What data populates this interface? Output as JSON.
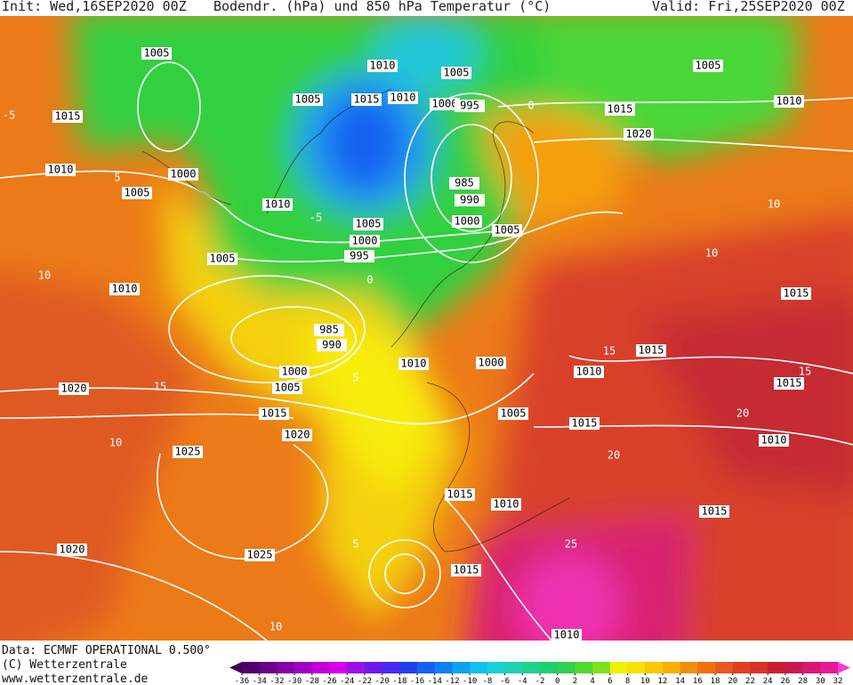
{
  "header": {
    "init": "Init: Wed,16SEP2020 00Z",
    "title": "Bodendr. (hPa) und 850 hPa Temperatur (°C)",
    "valid": "Valid: Fri,25SEP2020 00Z"
  },
  "footer": {
    "data": "Data: ECMWF OPERATIONAL 0.500°",
    "copyright": "(C) Wetterzentrale",
    "url": "www.wetterzentrale.de"
  },
  "colorbar": {
    "ticks": [
      -36,
      -34,
      -32,
      -30,
      -28,
      -26,
      -24,
      -22,
      -20,
      -18,
      -16,
      -14,
      -12,
      -10,
      -8,
      -6,
      -4,
      -2,
      0,
      2,
      4,
      6,
      8,
      10,
      12,
      14,
      16,
      18,
      20,
      22,
      24,
      26,
      28,
      30,
      32
    ],
    "colors": [
      "#40005a",
      "#52006e",
      "#6a0088",
      "#8400a4",
      "#a000c0",
      "#c000d8",
      "#d800e8",
      "#9a10e8",
      "#7018ec",
      "#4a28f0",
      "#2040f0",
      "#1860f0",
      "#1080f0",
      "#10a0f0",
      "#10c0f0",
      "#18d0d8",
      "#20d0b0",
      "#20d090",
      "#20d070",
      "#30d050",
      "#50d830",
      "#80e020",
      "#f0f000",
      "#f8e000",
      "#f8c800",
      "#f8b000",
      "#f09010",
      "#f07010",
      "#e85820",
      "#e04020",
      "#d83028",
      "#c82030",
      "#c81850",
      "#d81870",
      "#e81898",
      "#f840d0"
    ]
  },
  "pressure_labels": [
    1005,
    1015,
    1010,
    1005,
    1000,
    1005,
    1015,
    1010,
    1010,
    1000,
    995,
    1005,
    1010,
    985,
    990,
    1000,
    1005,
    1000,
    995,
    1005,
    1005,
    1010,
    985,
    990,
    1000,
    1005,
    1010,
    1000,
    1020,
    1015,
    1005,
    1020,
    1025,
    1015,
    1010,
    1020,
    1025,
    1015,
    1010,
    1005,
    1015,
    1010,
    1020,
    1015,
    1015,
    1010,
    1015,
    1015,
    1010,
    1015
  ],
  "temperature_labels": [
    10,
    5,
    -5,
    0,
    5,
    10,
    15,
    15,
    -5,
    10,
    20,
    25,
    10,
    15,
    20,
    5,
    0,
    10
  ]
}
